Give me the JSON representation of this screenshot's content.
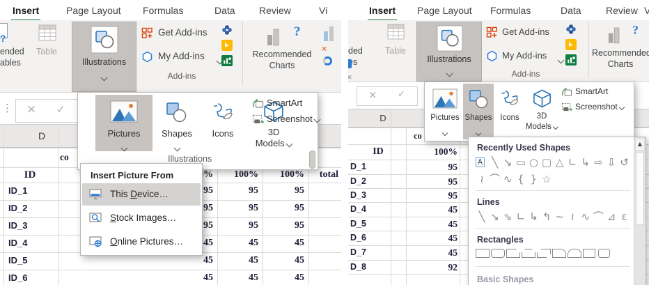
{
  "colors": {
    "excel_green": "#217346",
    "addin_orange": "#d83b01",
    "icon_blue": "#2b7cd3",
    "shape_blue": "#2e75b6",
    "bing_yellow": "#ffb900",
    "visio_blue": "#2b579a",
    "sheet_green": "#107c41"
  },
  "glyphs": {
    "question": "?",
    "cancel": "×",
    "enter": "✓",
    "dots": "⋮",
    "scroll_up": "▲"
  },
  "left_panel": {
    "tabs": [
      {
        "label": "Insert",
        "selected": true
      },
      {
        "label": "Page Layout"
      },
      {
        "label": "Formulas"
      },
      {
        "label": "Data"
      },
      {
        "label": "Review"
      },
      {
        "label": "Vi"
      }
    ],
    "ribbon": {
      "pivot_fragment_1": "ended",
      "pivot_fragment_2": "ables",
      "table": "Table",
      "illustrations": "Illustrations",
      "get_addins": "Get Add-ins",
      "my_addins": "My Add-ins",
      "group_addins": "Add-ins",
      "rec_charts_1": "Recommended",
      "rec_charts_2": "Charts"
    },
    "sheet": {
      "col_letter": "D",
      "partial_cell": "co",
      "id_header": "ID",
      "value_headers": [
        "0%",
        "100%",
        "100%",
        "total"
      ],
      "rows": [
        {
          "id": "ID_1",
          "values": [
            "95",
            "95",
            "95"
          ]
        },
        {
          "id": "ID_2",
          "values": [
            "95",
            "95",
            "95"
          ]
        },
        {
          "id": "ID_3",
          "values": [
            "95",
            "95",
            "95"
          ]
        },
        {
          "id": "ID_4",
          "values": [
            "45",
            "45",
            "45"
          ]
        },
        {
          "id": "ID_5",
          "values": [
            "45",
            "45",
            "45"
          ]
        },
        {
          "id": "ID_6",
          "values": [
            "45",
            "45",
            "45"
          ]
        }
      ]
    },
    "illus_panel": {
      "pictures": "Pictures",
      "shapes": "Shapes",
      "icons": "Icons",
      "models_1": "3D",
      "models_2": "Models",
      "smartart": "SmartArt",
      "screenshot": "Screenshot",
      "caption": "Illustrations"
    },
    "picture_menu": {
      "header": "Insert Picture From",
      "items": [
        {
          "pre": "This ",
          "key": "D",
          "post": "evice…",
          "highlighted": true,
          "icon": "this-device-icon"
        },
        {
          "pre": "",
          "key": "S",
          "post": "tock Images…",
          "highlighted": false,
          "icon": "stock-images-icon"
        },
        {
          "pre": "",
          "key": "O",
          "post": "nline Pictures…",
          "highlighted": false,
          "icon": "online-pictures-icon"
        }
      ]
    }
  },
  "right_panel": {
    "tabs": [
      {
        "label": "Insert",
        "selected": true
      },
      {
        "label": "Page Layout"
      },
      {
        "label": "Formulas"
      },
      {
        "label": "Data"
      },
      {
        "label": "Review"
      },
      {
        "label": "Vie"
      }
    ],
    "ribbon": {
      "pivot_fragment_1": "ded",
      "pivot_fragment_2": "es",
      "table": "Table",
      "illustrations": "Illustrations",
      "get_addins": "Get Add-ins",
      "my_addins": "My Add-ins",
      "group_addins": "Add-ins",
      "rec_charts_1": "Recommended",
      "rec_charts_2": "Charts"
    },
    "sheet": {
      "col_letter": "D",
      "partial_cell": "co",
      "id_header": "ID",
      "value_header": "100%",
      "rows": [
        {
          "id": "D_1",
          "value": "95"
        },
        {
          "id": "D_2",
          "value": "95"
        },
        {
          "id": "D_3",
          "value": "95"
        },
        {
          "id": "D_4",
          "value": "45"
        },
        {
          "id": "D_5",
          "value": "45"
        },
        {
          "id": "D_6",
          "value": "45"
        },
        {
          "id": "D_7",
          "value": "45"
        },
        {
          "id": "D_8",
          "value": "92"
        }
      ]
    },
    "illus_panel": {
      "pictures": "Pictures",
      "shapes": "Shapes",
      "icons": "Icons",
      "models_1": "3D",
      "models_2": "Models",
      "smartart": "SmartArt",
      "screenshot": "Screenshot"
    },
    "shapes_flyout": {
      "sections": [
        {
          "title": "Recently Used Shapes",
          "glyph_rows": [
            [
              "A",
              "╲",
              "↘",
              "▭",
              "○",
              "▢",
              "△",
              "∟",
              "↳",
              "⇨",
              "⇩",
              "↺"
            ],
            [
              "≀",
              "⌒",
              "∿",
              "{",
              "}",
              "☆"
            ]
          ]
        },
        {
          "title": "Lines",
          "glyph_rows": [
            [
              "╲",
              "↘",
              "⇘",
              "∟",
              "↳",
              "↰",
              "∼",
              "≀",
              "∿",
              "⌒",
              "⊿",
              "ɛ"
            ]
          ]
        },
        {
          "title": "Rectangles",
          "rects": [
            "rect",
            "rounded",
            "snip-one",
            "snip-two",
            "snip-diag",
            "round-one",
            "round-two",
            "plain",
            "rounded-sm"
          ]
        }
      ],
      "partial_next_title": "Basic Shapes"
    }
  }
}
